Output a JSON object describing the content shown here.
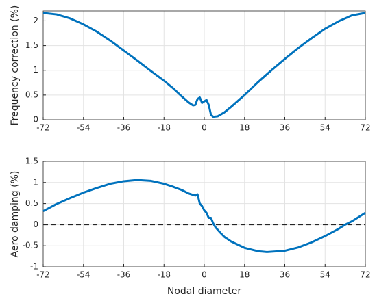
{
  "chart_data": [
    {
      "type": "line",
      "ylabel": "Frequency correction (%)",
      "x": [
        -72,
        -66,
        -60,
        -54,
        -48,
        -42,
        -36,
        -30,
        -24,
        -18,
        -14,
        -10,
        -7,
        -5,
        -4,
        -3,
        -2,
        -1,
        0,
        1,
        2,
        3,
        4,
        6,
        9,
        12,
        18,
        24,
        30,
        36,
        42,
        48,
        54,
        60,
        66,
        72
      ],
      "series": [
        {
          "name": "Frequency correction",
          "color": "#0072bd",
          "values": [
            2.16,
            2.13,
            2.05,
            1.93,
            1.78,
            1.6,
            1.4,
            1.2,
            0.99,
            0.79,
            0.64,
            0.47,
            0.35,
            0.29,
            0.3,
            0.42,
            0.45,
            0.34,
            0.37,
            0.4,
            0.3,
            0.1,
            0.06,
            0.07,
            0.15,
            0.26,
            0.5,
            0.76,
            1.0,
            1.23,
            1.45,
            1.65,
            1.84,
            1.99,
            2.11,
            2.16
          ]
        }
      ],
      "xlim": [
        -72,
        72
      ],
      "xticks": [
        -72,
        -54,
        -36,
        -18,
        0,
        18,
        36,
        54,
        72
      ],
      "ylim": [
        0,
        2.2
      ],
      "yticks": [
        0,
        0.5,
        1,
        1.5,
        2
      ],
      "grid": true
    },
    {
      "type": "line",
      "xlabel": "Nodal diameter",
      "ylabel": "Aero damping (%)",
      "x": [
        -72,
        -66,
        -60,
        -54,
        -48,
        -42,
        -36,
        -30,
        -24,
        -18,
        -14,
        -10,
        -7,
        -4,
        -3,
        -2,
        -1,
        0,
        1,
        2,
        3,
        4,
        5,
        7,
        9,
        12,
        18,
        24,
        28,
        36,
        42,
        48,
        54,
        60,
        63,
        66,
        72
      ],
      "series": [
        {
          "name": "Aero damping",
          "color": "#0072bd",
          "values": [
            0.32,
            0.49,
            0.63,
            0.76,
            0.87,
            0.97,
            1.03,
            1.06,
            1.04,
            0.97,
            0.9,
            0.82,
            0.74,
            0.69,
            0.72,
            0.5,
            0.44,
            0.34,
            0.28,
            0.16,
            0.16,
            0.03,
            -0.06,
            -0.18,
            -0.29,
            -0.4,
            -0.55,
            -0.63,
            -0.65,
            -0.62,
            -0.54,
            -0.42,
            -0.27,
            -0.1,
            0,
            0.08,
            0.28
          ]
        }
      ],
      "xlim": [
        -72,
        72
      ],
      "xticks": [
        -72,
        -54,
        -36,
        -18,
        0,
        18,
        36,
        54,
        72
      ],
      "ylim": [
        -1,
        1.5
      ],
      "yticks": [
        -1,
        -0.5,
        0,
        0.5,
        1,
        1.5
      ],
      "grid": true,
      "reference_line": 0
    }
  ]
}
